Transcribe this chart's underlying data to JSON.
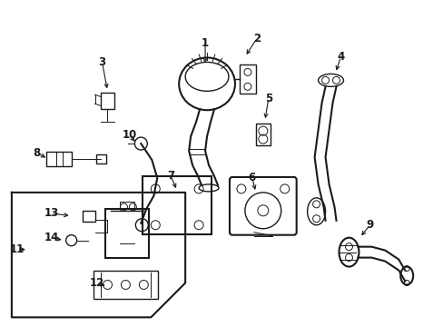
{
  "bg_color": "#ffffff",
  "line_color": "#1a1a1a",
  "fig_width": 4.89,
  "fig_height": 3.6,
  "dpi": 100,
  "font_size": 8.5,
  "lw_main": 1.5,
  "lw_med": 1.0,
  "lw_thin": 0.7
}
